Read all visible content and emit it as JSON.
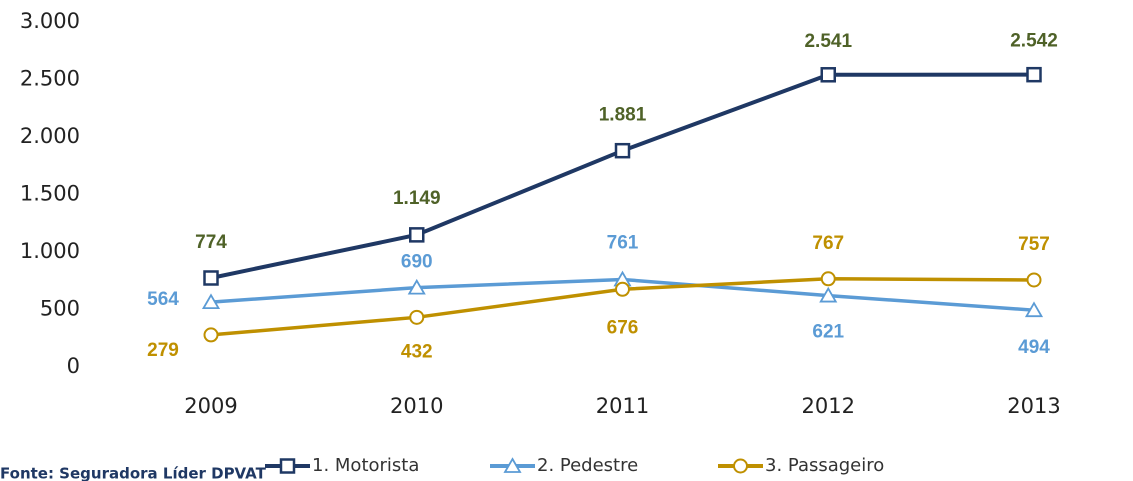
{
  "chart_data": {
    "type": "line",
    "categories": [
      "2009",
      "2010",
      "2011",
      "2012",
      "2013"
    ],
    "series": [
      {
        "name": "1. Motorista",
        "color": "#1f3864",
        "marker": "square",
        "values": [
          774,
          1149,
          1881,
          2541,
          2542
        ],
        "value_labels": [
          "774",
          "1.149",
          "1.881",
          "2.541",
          "2.542"
        ]
      },
      {
        "name": "2. Pedestre",
        "color": "#5b9bd5",
        "marker": "triangle",
        "values": [
          564,
          690,
          761,
          621,
          494
        ]
      },
      {
        "name": "3. Passageiro",
        "color": "#bf9000",
        "marker": "circle",
        "values": [
          279,
          432,
          676,
          767,
          757
        ]
      }
    ],
    "ylim": [
      0,
      3000
    ],
    "yticks": [
      0,
      500,
      {
        "value": 1000,
        "label": "1.000"
      },
      {
        "value": 1500,
        "label": "1.500"
      },
      {
        "value": 2000,
        "label": "2.000"
      },
      {
        "value": 2500,
        "label": "2.500"
      },
      {
        "value": 3000,
        "label": "3.000"
      }
    ],
    "grid": false,
    "legend": "bottom",
    "source": "Fonte: Seguradora Líder DPVAT"
  }
}
